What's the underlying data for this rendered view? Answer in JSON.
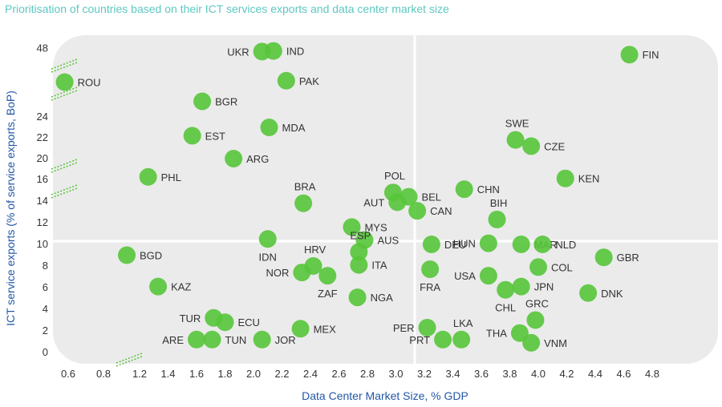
{
  "chart_data": {
    "type": "scatter",
    "title": "Prioritisation of countries based on their ICT services exports and data center market size",
    "xlabel": "Data Center Market Size, % GDP",
    "ylabel": "ICT service exports (% of service exports, BoP)",
    "x_ticks": [
      "0.6",
      "0.8",
      "1.2",
      "1.4",
      "1.6",
      "1.8",
      "2.0",
      "2.2",
      "2.4",
      "2.6",
      "2.8",
      "3.0",
      "3.2",
      "3.4",
      "3.6",
      "3.8",
      "4.0",
      "4.2",
      "4.4",
      "4.6",
      "4.8"
    ],
    "y_ticks": [
      "0",
      "2",
      "4",
      "6",
      "8",
      "10",
      "12",
      "14",
      "16",
      "20",
      "22",
      "24",
      "48"
    ],
    "colors": {
      "point": "#57c53a",
      "panel": "#ebebeb",
      "divider": "#ffffff",
      "title": "#5bc8c0",
      "axis_title": "#2457a6"
    },
    "points": [
      {
        "label": "UKR",
        "x": 2.06,
        "y": 47.0
      },
      {
        "label": "IND",
        "x": 2.14,
        "y": 47.2
      },
      {
        "label": "FIN",
        "x": 4.64,
        "y": 46.0
      },
      {
        "label": "ROU",
        "x": 0.58,
        "y": 36.0
      },
      {
        "label": "PAK",
        "x": 2.23,
        "y": 37.0
      },
      {
        "label": "BGR",
        "x": 1.64,
        "y": 25.5
      },
      {
        "label": "MDA",
        "x": 2.11,
        "y": 23.0
      },
      {
        "label": "EST",
        "x": 1.57,
        "y": 22.2
      },
      {
        "label": "SWE",
        "x": 3.84,
        "y": 21.8
      },
      {
        "label": "CZE",
        "x": 3.95,
        "y": 21.2
      },
      {
        "label": "ARG",
        "x": 1.86,
        "y": 20.0
      },
      {
        "label": "PHL",
        "x": 1.26,
        "y": 16.5
      },
      {
        "label": "KEN",
        "x": 4.19,
        "y": 16.2
      },
      {
        "label": "POL",
        "x": 2.98,
        "y": 14.8
      },
      {
        "label": "CHN",
        "x": 3.48,
        "y": 15.1
      },
      {
        "label": "BEL",
        "x": 3.09,
        "y": 14.4
      },
      {
        "label": "AUT",
        "x": 3.01,
        "y": 13.9
      },
      {
        "label": "BRA",
        "x": 2.35,
        "y": 13.8
      },
      {
        "label": "CAN",
        "x": 3.15,
        "y": 13.1
      },
      {
        "label": "BIH",
        "x": 3.71,
        "y": 12.3
      },
      {
        "label": "MYS",
        "x": 2.69,
        "y": 11.6
      },
      {
        "label": "IDN",
        "x": 2.1,
        "y": 10.5
      },
      {
        "label": "AUS",
        "x": 2.78,
        "y": 10.4
      },
      {
        "label": "HUN",
        "x": 3.65,
        "y": 10.1
      },
      {
        "label": "DEU",
        "x": 3.25,
        "y": 10.0
      },
      {
        "label": "MAR",
        "x": 3.88,
        "y": 10.0
      },
      {
        "label": "NLD",
        "x": 4.03,
        "y": 10.0
      },
      {
        "label": "ESP",
        "x": 2.74,
        "y": 9.3
      },
      {
        "label": "BGD",
        "x": 1.11,
        "y": 9.0
      },
      {
        "label": "GBR",
        "x": 4.46,
        "y": 8.8
      },
      {
        "label": "HRV",
        "x": 2.42,
        "y": 8.0
      },
      {
        "label": "ITA",
        "x": 2.74,
        "y": 8.1
      },
      {
        "label": "FRA",
        "x": 3.24,
        "y": 7.7
      },
      {
        "label": "COL",
        "x": 4.0,
        "y": 7.9
      },
      {
        "label": "NOR",
        "x": 2.34,
        "y": 7.4
      },
      {
        "label": "ZAF",
        "x": 2.52,
        "y": 7.1
      },
      {
        "label": "USA",
        "x": 3.65,
        "y": 7.1
      },
      {
        "label": "KAZ",
        "x": 1.33,
        "y": 6.1
      },
      {
        "label": "JPN",
        "x": 3.88,
        "y": 6.1
      },
      {
        "label": "CHL",
        "x": 3.77,
        "y": 5.8
      },
      {
        "label": "DNK",
        "x": 4.35,
        "y": 5.5
      },
      {
        "label": "NGA",
        "x": 2.73,
        "y": 5.1
      },
      {
        "label": "TUR",
        "x": 1.72,
        "y": 3.2
      },
      {
        "label": "ECU",
        "x": 1.8,
        "y": 2.8
      },
      {
        "label": "GRC",
        "x": 3.98,
        "y": 3.0
      },
      {
        "label": "MEX",
        "x": 2.33,
        "y": 2.2
      },
      {
        "label": "PER",
        "x": 3.22,
        "y": 2.3
      },
      {
        "label": "THA",
        "x": 3.87,
        "y": 1.8
      },
      {
        "label": "ARE",
        "x": 1.6,
        "y": 1.2
      },
      {
        "label": "TUN",
        "x": 1.71,
        "y": 1.2
      },
      {
        "label": "JOR",
        "x": 2.06,
        "y": 1.2
      },
      {
        "label": "PRT",
        "x": 3.33,
        "y": 1.2
      },
      {
        "label": "LKA",
        "x": 3.46,
        "y": 1.2
      },
      {
        "label": "VNM",
        "x": 3.95,
        "y": 0.9
      }
    ]
  }
}
